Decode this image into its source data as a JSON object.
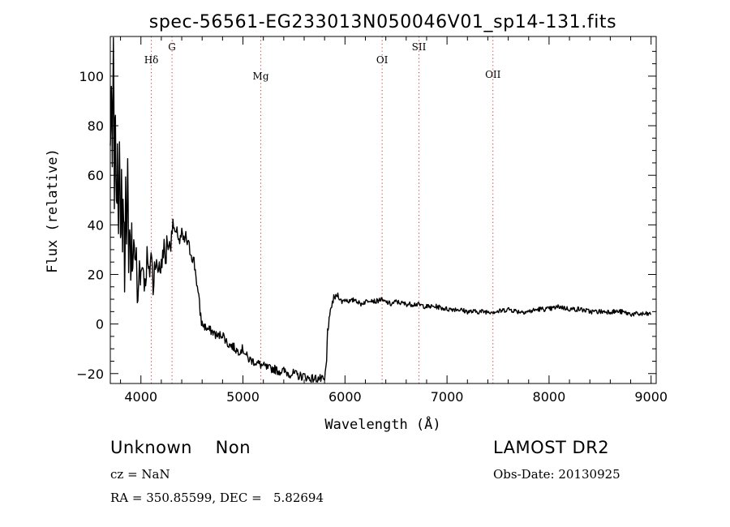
{
  "chart_data": {
    "type": "line",
    "title": "spec-56561-EG233013N050046V01_sp14-131.fits",
    "xlabel": "Wavelength (Å)",
    "ylabel": "Flux (relative)",
    "xlim": [
      3700,
      9050
    ],
    "ylim": [
      -24,
      116
    ],
    "xticks": [
      4000,
      5000,
      6000,
      7000,
      8000,
      9000
    ],
    "yticks": [
      -20,
      0,
      20,
      40,
      60,
      80,
      100
    ],
    "grid": false,
    "line_color": "#000000",
    "marker_color": "#d03030",
    "series": [
      {
        "x": [
          3700,
          3710,
          3720,
          3730,
          3740,
          3750,
          3760,
          3770,
          3780,
          3790,
          3800,
          3810,
          3820,
          3830,
          3840,
          3850,
          3860,
          3870,
          3880,
          3890,
          3900,
          3910,
          3920,
          3930,
          3940,
          3950,
          3960,
          3970,
          3980,
          3990,
          4000,
          4020,
          4040,
          4060,
          4080,
          4100,
          4120,
          4140,
          4160,
          4180,
          4200,
          4220,
          4240,
          4260,
          4280,
          4300,
          4320,
          4340,
          4360,
          4380,
          4400,
          4420,
          4440,
          4460,
          4480,
          4500,
          4520,
          4540,
          4560,
          4580,
          4600,
          4650,
          4700,
          4750,
          4800,
          4850,
          4900,
          4950,
          5000,
          5050,
          5100,
          5150,
          5200,
          5250,
          5300,
          5350,
          5400,
          5450,
          5500,
          5550,
          5600,
          5650,
          5700,
          5750,
          5800,
          5820,
          5830,
          5840,
          5850,
          5870,
          5890,
          5910,
          5930,
          5950,
          5970,
          6000,
          6050,
          6100,
          6150,
          6200,
          6250,
          6300,
          6350,
          6380,
          6400,
          6450,
          6500,
          6600,
          6700,
          6800,
          6900,
          7000,
          7100,
          7200,
          7300,
          7400,
          7500,
          7600,
          7700,
          7800,
          7900,
          8000,
          8100,
          8200,
          8300,
          8400,
          8500,
          8600,
          8700,
          8800,
          8900,
          9000
        ],
        "y": [
          70,
          95,
          60,
          115,
          55,
          90,
          40,
          75,
          45,
          65,
          30,
          60,
          35,
          50,
          20,
          55,
          25,
          60,
          30,
          45,
          20,
          35,
          15,
          40,
          25,
          30,
          18,
          5,
          20,
          28,
          20,
          25,
          15,
          27,
          18,
          30,
          15,
          28,
          20,
          25,
          22,
          32,
          25,
          35,
          30,
          38,
          40,
          35,
          37,
          33,
          36,
          33,
          35,
          32,
          30,
          28,
          25,
          20,
          12,
          5,
          0,
          -2,
          -3,
          -5,
          -4,
          -8,
          -9,
          -11,
          -10,
          -14,
          -15,
          -16,
          -17,
          -18,
          -18,
          -19,
          -19,
          -20,
          -20,
          -21,
          -21,
          -22,
          -22,
          -22,
          -23,
          -15,
          -2,
          0,
          2,
          8,
          10,
          11,
          12,
          10,
          9,
          10,
          9,
          10,
          8,
          9,
          10,
          9,
          10,
          9,
          9,
          8,
          9,
          8,
          8,
          7,
          7,
          6,
          6,
          5,
          5,
          5,
          5,
          6,
          5,
          5,
          6,
          6,
          7,
          6,
          6,
          5,
          5,
          5,
          5,
          4,
          4,
          4
        ]
      }
    ],
    "line_markers": [
      {
        "label": "Hδ",
        "x": 4102
      },
      {
        "label": "G",
        "x": 4305
      },
      {
        "label": "Mg",
        "x": 5175
      },
      {
        "label": "OI",
        "x": 6364
      },
      {
        "label": "SII",
        "x": 6725
      },
      {
        "label": "OII",
        "x": 7450
      }
    ]
  },
  "info": {
    "class_text": "Unknown    Non",
    "survey": "LAMOST DR2",
    "cz": "cz = NaN",
    "obs_date": "Obs-Date: 20130925",
    "coords": "RA = 350.85599, DEC =   5.82694"
  }
}
